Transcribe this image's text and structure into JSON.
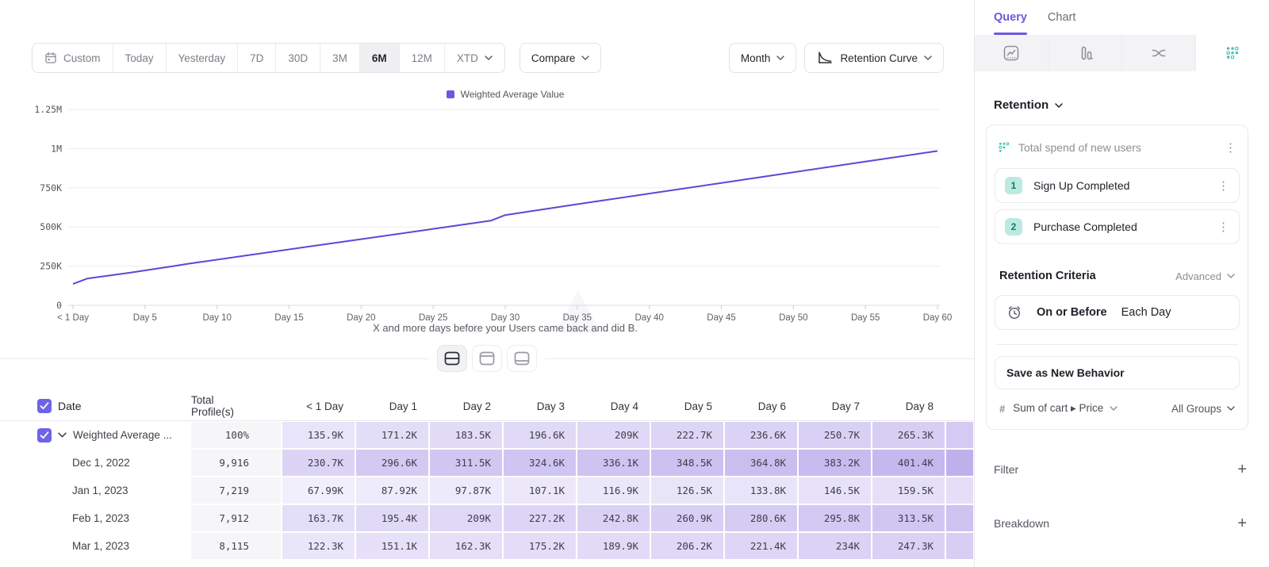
{
  "colors": {
    "accent_purple": "#6a5ae0",
    "line_purple": "#5b49d6",
    "checkbox_purple": "#6f63e8",
    "teal": "#3fbfae",
    "badge_bg": "#bce9e1",
    "badge_text": "#177a6b",
    "total_cell_bg": "#f6f6f8"
  },
  "toolbar": {
    "date_ranges": [
      {
        "label": "Custom",
        "icon": "calendar-icon"
      },
      {
        "label": "Today"
      },
      {
        "label": "Yesterday"
      },
      {
        "label": "7D"
      },
      {
        "label": "30D"
      },
      {
        "label": "3M"
      },
      {
        "label": "6M"
      },
      {
        "label": "12M"
      },
      {
        "label": "XTD",
        "chevron": true
      }
    ],
    "selected_range": "6M",
    "compare_label": "Compare",
    "granularity_label": "Month",
    "chart_type_label": "Retention Curve"
  },
  "chart_data": {
    "type": "line",
    "title": "",
    "legend": {
      "label": "Weighted Average Value",
      "color": "#6a5ae0",
      "position": "top-center"
    },
    "caption": "X and more days before your Users came back and did B.",
    "x_axis": {
      "tick_days": [
        0,
        5,
        10,
        15,
        20,
        25,
        30,
        35,
        40,
        45,
        50,
        55,
        60
      ],
      "tick_labels": [
        "< 1 Day",
        "Day 5",
        "Day 10",
        "Day 15",
        "Day 20",
        "Day 25",
        "Day 30",
        "Day 35",
        "Day 40",
        "Day 45",
        "Day 50",
        "Day 55",
        "Day 60"
      ]
    },
    "y_axis": {
      "tick_labels_bottom_up": [
        "0",
        "250K",
        "500K",
        "750K",
        "1M",
        "1.25M"
      ],
      "max_value_k": 1250,
      "grid": true
    },
    "series": [
      {
        "name": "Weighted Average Value",
        "color": "#5b49d6",
        "points_day_valuek": [
          [
            0,
            135.9
          ],
          [
            1,
            171.2
          ],
          [
            2,
            183.5
          ],
          [
            3,
            196.6
          ],
          [
            4,
            209
          ],
          [
            5,
            222.7
          ],
          [
            6,
            236.6
          ],
          [
            7,
            250.7
          ],
          [
            8,
            265.3
          ],
          [
            12,
            318
          ],
          [
            16,
            370
          ],
          [
            20,
            422
          ],
          [
            24,
            474
          ],
          [
            29,
            540
          ],
          [
            30,
            576
          ],
          [
            35,
            645
          ],
          [
            40,
            713
          ],
          [
            45,
            781
          ],
          [
            50,
            849
          ],
          [
            55,
            917
          ],
          [
            60,
            985
          ]
        ]
      }
    ]
  },
  "view_toggle": {
    "options": [
      {
        "name": "split-view"
      },
      {
        "name": "chart-only-view"
      },
      {
        "name": "table-only-view"
      }
    ],
    "selected": 0
  },
  "table": {
    "columns": [
      "Date",
      "Total Profile(s)",
      "< 1 Day",
      "Day 1",
      "Day 2",
      "Day 3",
      "Day 4",
      "Day 5",
      "Day 6",
      "Day 7",
      "Day 8"
    ],
    "heat_scale": {
      "min_color": "#f2f0fc",
      "max_color": "#c3b5ee",
      "min_value_k": 60,
      "max_value_k": 420
    },
    "rows": [
      {
        "label": "Weighted Average ...",
        "checked": true,
        "expandable": true,
        "total": "100%",
        "values": [
          "135.9K",
          "171.2K",
          "183.5K",
          "196.6K",
          "209K",
          "222.7K",
          "236.6K",
          "250.7K",
          "265.3K"
        ],
        "day9_color": "#d5caf3"
      },
      {
        "label": "Dec 1, 2022",
        "total": "9,916",
        "values": [
          "230.7K",
          "296.6K",
          "311.5K",
          "324.6K",
          "336.1K",
          "348.5K",
          "364.8K",
          "383.2K",
          "401.4K"
        ],
        "day9_color": "#bfb0ec"
      },
      {
        "label": "Jan 1, 2023",
        "total": "7,219",
        "values": [
          "67.99K",
          "87.92K",
          "97.87K",
          "107.1K",
          "116.9K",
          "126.5K",
          "133.8K",
          "146.5K",
          "159.5K"
        ],
        "day9_color": "#e4def8"
      },
      {
        "label": "Feb 1, 2023",
        "total": "7,912",
        "values": [
          "163.7K",
          "195.4K",
          "209K",
          "227.2K",
          "242.8K",
          "260.9K",
          "280.6K",
          "295.8K",
          "313.5K"
        ],
        "day9_color": "#cec2f1"
      },
      {
        "label": "Mar 1, 2023",
        "total": "8,115",
        "values": [
          "122.3K",
          "151.1K",
          "162.3K",
          "175.2K",
          "189.9K",
          "206.2K",
          "221.4K",
          "234K",
          "247.3K"
        ],
        "day9_color": "#d8cef4"
      }
    ]
  },
  "sidebar": {
    "tabs": [
      {
        "label": "Query",
        "active": true
      },
      {
        "label": "Chart",
        "active": false
      }
    ],
    "chart_type_icons": [
      "insights-chart",
      "funnel-bars",
      "flows",
      "retention-dots"
    ],
    "selected_chart_type": "retention-dots",
    "section_label": "Retention",
    "behavior": {
      "title": "Total spend of new users",
      "steps": [
        {
          "num": "1",
          "label": "Sign Up Completed"
        },
        {
          "num": "2",
          "label": "Purchase Completed"
        }
      ]
    },
    "criteria": {
      "label": "Retention Criteria",
      "mode": "Advanced",
      "condition_left": "On or Before",
      "condition_right": "Each Day"
    },
    "save_button": "Save as New Behavior",
    "measure": {
      "prefix": "#",
      "left": "Sum of cart ▸ Price",
      "right": "All Groups"
    },
    "filter_label": "Filter",
    "breakdown_label": "Breakdown"
  }
}
